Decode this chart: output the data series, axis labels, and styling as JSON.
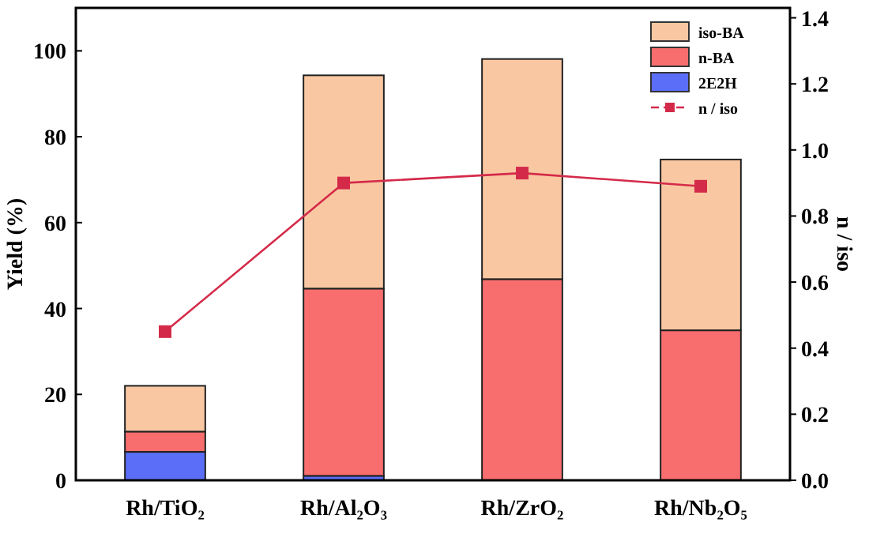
{
  "chart_data": {
    "type": "bar",
    "stacked": true,
    "ylabel": "Yield (%)",
    "y2label": "n / iso",
    "categories": [
      "Rh/TiO₂",
      "Rh/Al₂O₃",
      "Rh/ZrO₂",
      "Rh/Nb₂O₅"
    ],
    "series": [
      {
        "name": "2E2H",
        "color": "#5b6ef7",
        "values": [
          6.6,
          1.0,
          0,
          0
        ]
      },
      {
        "name": "n-BA",
        "color": "#f86e6e",
        "values": [
          4.7,
          43.6,
          46.8,
          34.9
        ]
      },
      {
        "name": "iso-BA",
        "color": "#f9c8a2",
        "values": [
          10.7,
          49.7,
          51.3,
          39.8
        ]
      },
      {
        "name": "n / iso",
        "type": "line",
        "axis": "y2",
        "color": "#d42a4a",
        "marker": "square",
        "values": [
          0.45,
          0.9,
          0.93,
          0.89
        ]
      }
    ],
    "ylim": [
      0,
      110
    ],
    "yticks": [
      0,
      20,
      40,
      60,
      80,
      100
    ],
    "y2lim": [
      0,
      1.43
    ],
    "y2ticks": [
      {
        "value": 0,
        "label": "0.0"
      },
      {
        "value": 0.2,
        "label": "0.2"
      },
      {
        "value": 0.4,
        "label": "0.4"
      },
      {
        "value": 0.6,
        "label": "0.6"
      },
      {
        "value": 0.8,
        "label": "0.8"
      },
      {
        "value": 1,
        "label": "1.0"
      },
      {
        "value": 1.2,
        "label": "1.2"
      },
      {
        "value": 1.4,
        "label": "1.4"
      }
    ],
    "legend": "top right",
    "grid": false
  }
}
